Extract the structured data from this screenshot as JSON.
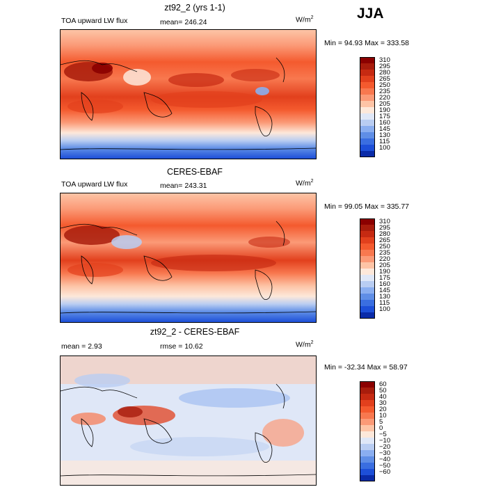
{
  "season": "JJA",
  "panels": [
    {
      "id": "model",
      "title": "zt92_2 (yrs 1-1)",
      "left_label": "TOA upward LW flux",
      "mean_text": "mean= 246.24",
      "units": "W/m",
      "units_sup": "2",
      "minmax": "Min =  94.93 Max = 333.58",
      "levels": [
        "310",
        "295",
        "280",
        "265",
        "250",
        "235",
        "220",
        "205",
        "190",
        "175",
        "160",
        "145",
        "130",
        "115",
        "100"
      ],
      "colors": [
        "#8b0000",
        "#a81c0c",
        "#c62a12",
        "#e2401d",
        "#f45a2e",
        "#f8784f",
        "#fb9a77",
        "#fdc4a6",
        "#fde8da",
        "#dfe7f7",
        "#b9cdf2",
        "#8aaef0",
        "#5f8ee6",
        "#3a6ee0",
        "#1d4fd8",
        "#0a2ba8"
      ]
    },
    {
      "id": "obs",
      "title": "CERES-EBAF",
      "left_label": "TOA upward LW flux",
      "mean_text": "mean= 243.31",
      "units": "W/m",
      "units_sup": "2",
      "minmax": "Min =  99.05 Max = 335.77",
      "levels": [
        "310",
        "295",
        "280",
        "265",
        "250",
        "235",
        "220",
        "205",
        "190",
        "175",
        "160",
        "145",
        "130",
        "115",
        "100"
      ],
      "colors": [
        "#8b0000",
        "#a81c0c",
        "#c62a12",
        "#e2401d",
        "#f45a2e",
        "#f8784f",
        "#fb9a77",
        "#fdc4a6",
        "#fde8da",
        "#dfe7f7",
        "#b9cdf2",
        "#8aaef0",
        "#5f8ee6",
        "#3a6ee0",
        "#1d4fd8",
        "#0a2ba8"
      ]
    },
    {
      "id": "diff",
      "title": "zt92_2 - CERES-EBAF",
      "left_label": "mean =    2.93",
      "mean_text": "rmse =   10.62",
      "units": "W/m",
      "units_sup": "2",
      "minmax": "Min = -32.34 Max =  58.97",
      "levels": [
        "60",
        "50",
        "40",
        "30",
        "20",
        "10",
        "5",
        "0",
        "−5",
        "−10",
        "−20",
        "−30",
        "−40",
        "−50",
        "−60"
      ],
      "colors": [
        "#8b0000",
        "#a81c0c",
        "#c62a12",
        "#e2401d",
        "#f45a2e",
        "#f8784f",
        "#fb9a77",
        "#fdc4a6",
        "#fde8da",
        "#dfe7f7",
        "#b9cdf2",
        "#8aaef0",
        "#5f8ee6",
        "#3a6ee0",
        "#1d4fd8",
        "#0a2ba8"
      ]
    }
  ]
}
